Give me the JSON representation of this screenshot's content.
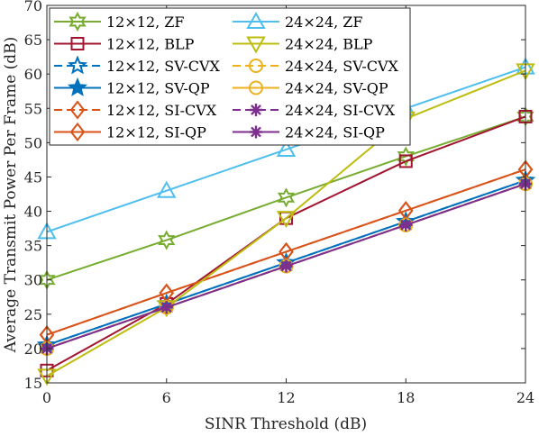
{
  "chart_data": {
    "type": "line",
    "xlabel": "SINR Threshold (dB)",
    "ylabel": "Average Transmit Power Per Frame (dB)",
    "xlim": [
      0,
      24
    ],
    "ylim": [
      15,
      70
    ],
    "xticks": [
      0,
      6,
      12,
      18,
      24
    ],
    "yticks": [
      15,
      20,
      25,
      30,
      35,
      40,
      45,
      50,
      55,
      60,
      65,
      70
    ],
    "x": [
      0,
      6,
      12,
      18,
      24
    ],
    "grid": false,
    "legend_position": "top-left, two columns",
    "series": [
      {
        "name": "12×12, ZF",
        "values": [
          30,
          35.8,
          42,
          48,
          53.8
        ],
        "color": "#77AC30",
        "marker": "hexagram",
        "dash": "solid"
      },
      {
        "name": "12×12, BLP",
        "values": [
          16.8,
          26.5,
          39,
          47.3,
          53.8
        ],
        "color": "#A2142F",
        "marker": "square",
        "dash": "solid"
      },
      {
        "name": "12×12, SV-CVX",
        "values": [
          20.5,
          26.5,
          32.5,
          38.5,
          44.5
        ],
        "color": "#0072BD",
        "marker": "pentagram",
        "dash": "dashed"
      },
      {
        "name": "12×12, SV-QP",
        "values": [
          20.5,
          26.5,
          32.5,
          38.5,
          44.5
        ],
        "color": "#0072BD",
        "marker": "pentagram-filled",
        "dash": "solid"
      },
      {
        "name": "12×12, SI-CVX",
        "values": [
          22,
          28.1,
          34.1,
          40.1,
          46.1
        ],
        "color": "#D95319",
        "marker": "diamond",
        "dash": "dashed"
      },
      {
        "name": "12×12, SI-QP",
        "values": [
          22,
          28.1,
          34.1,
          40.1,
          46.1
        ],
        "color": "#D95319",
        "marker": "diamond",
        "dash": "solid"
      },
      {
        "name": "24×24, ZF",
        "values": [
          37,
          43,
          49,
          55,
          61
        ],
        "color": "#4DBEEE",
        "marker": "triangle-up",
        "dash": "solid"
      },
      {
        "name": "24×24, BLP",
        "values": [
          16,
          26,
          39,
          53.5,
          60.5
        ],
        "color": "#BDBD10",
        "marker": "triangle-down",
        "dash": "solid"
      },
      {
        "name": "24×24, SV-CVX",
        "values": [
          20,
          26,
          32,
          38,
          44
        ],
        "color": "#EDB120",
        "marker": "circle",
        "dash": "dashed"
      },
      {
        "name": "24×24, SV-QP",
        "values": [
          20,
          26,
          32,
          38,
          44
        ],
        "color": "#EDB120",
        "marker": "circle",
        "dash": "solid"
      },
      {
        "name": "24×24, SI-CVX",
        "values": [
          20,
          26,
          32,
          38,
          44
        ],
        "color": "#7E2F8E",
        "marker": "asterisk",
        "dash": "dashed"
      },
      {
        "name": "24×24, SI-QP",
        "values": [
          20,
          26,
          32,
          38,
          44
        ],
        "color": "#7E2F8E",
        "marker": "asterisk",
        "dash": "solid"
      }
    ]
  }
}
